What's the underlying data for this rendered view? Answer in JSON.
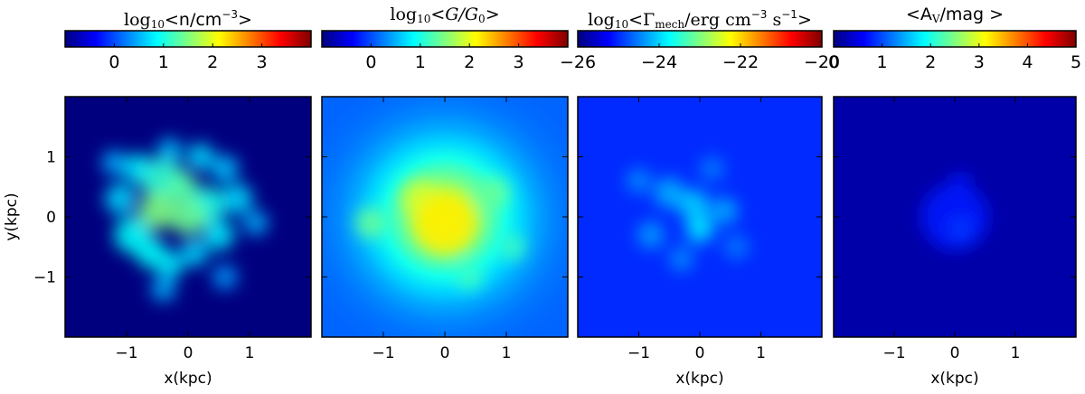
{
  "colormap": [
    "#00007f",
    "#0000ff",
    "#007fff",
    "#00ffff",
    "#7fff7f",
    "#ffff00",
    "#ff7f00",
    "#ff0000",
    "#7f0000"
  ],
  "panel_background": "#00007f",
  "axis_color": "#000000",
  "chart_data": [
    {
      "type": "heatmap",
      "colorbar_label": {
        "prefix": "log",
        "sub": "10",
        "lt": "<",
        "body": "n/cm",
        "sup": "−3",
        "gt": ">"
      },
      "colorbar_range": [
        -1,
        4
      ],
      "colorbar_ticks": [
        0,
        1,
        2,
        3
      ],
      "colorbar_tick_labels": [
        "0",
        "1",
        "2",
        "3"
      ],
      "xlabel": "x(kpc)",
      "ylabel": "y(kpc)",
      "xlim": [
        -2,
        2
      ],
      "ylim": [
        -2,
        2
      ],
      "xticks": [
        -1,
        0,
        1
      ],
      "xtick_labels": [
        "−1",
        "0",
        "1"
      ],
      "yticks": [
        -1,
        0,
        1
      ],
      "ytick_labels": [
        "−1",
        "0",
        "1"
      ],
      "background_value": -1,
      "blobs": [
        {
          "x": -0.4,
          "y": 0.6,
          "value": 1.1,
          "r": 0.35
        },
        {
          "x": -0.1,
          "y": 0.5,
          "value": 1.3,
          "r": 0.25
        },
        {
          "x": -0.5,
          "y": 0.1,
          "value": 1.5,
          "r": 0.3
        },
        {
          "x": 0.0,
          "y": 0.0,
          "value": 1.4,
          "r": 0.3
        },
        {
          "x": 0.3,
          "y": 0.2,
          "value": 1.0,
          "r": 0.3
        },
        {
          "x": -0.8,
          "y": 0.8,
          "value": 0.8,
          "r": 0.25
        },
        {
          "x": -1.1,
          "y": 0.3,
          "value": 0.7,
          "r": 0.25
        },
        {
          "x": -0.9,
          "y": -0.3,
          "value": 0.9,
          "r": 0.3
        },
        {
          "x": -0.6,
          "y": -0.6,
          "value": 0.9,
          "r": 0.25
        },
        {
          "x": -0.3,
          "y": -0.8,
          "value": 0.8,
          "r": 0.22
        },
        {
          "x": 0.1,
          "y": -0.6,
          "value": 0.7,
          "r": 0.22
        },
        {
          "x": 0.5,
          "y": -0.3,
          "value": 0.8,
          "r": 0.25
        },
        {
          "x": 0.8,
          "y": 0.3,
          "value": 0.7,
          "r": 0.25
        },
        {
          "x": 0.6,
          "y": 0.8,
          "value": 0.6,
          "r": 0.22
        },
        {
          "x": 0.2,
          "y": 1.0,
          "value": 0.7,
          "r": 0.22
        },
        {
          "x": -0.3,
          "y": 1.1,
          "value": 0.6,
          "r": 0.2
        },
        {
          "x": -1.2,
          "y": 0.9,
          "value": 0.5,
          "r": 0.2
        },
        {
          "x": 1.1,
          "y": -0.1,
          "value": 0.5,
          "r": 0.2
        },
        {
          "x": -0.4,
          "y": -1.2,
          "value": 0.5,
          "r": 0.2
        },
        {
          "x": 0.6,
          "y": -1.0,
          "value": 0.4,
          "r": 0.2
        }
      ]
    },
    {
      "type": "heatmap",
      "colorbar_label": {
        "prefix": "log",
        "sub": "10",
        "lt": "<",
        "body_italic": "G/G",
        "body_sub": "0",
        "gt": ">"
      },
      "colorbar_range": [
        -1,
        4
      ],
      "colorbar_ticks": [
        0,
        1,
        2,
        3
      ],
      "colorbar_tick_labels": [
        "0",
        "1",
        "2",
        "3"
      ],
      "xlabel": "",
      "ylabel": "",
      "xlim": [
        -2,
        2
      ],
      "ylim": [
        -2,
        2
      ],
      "xticks": [
        -1,
        0,
        1
      ],
      "xtick_labels": [
        "−1",
        "0",
        "1"
      ],
      "yticks": [
        -1,
        0,
        1
      ],
      "background_value": 0.1,
      "radial_profile": {
        "center": [
          0,
          0
        ],
        "peak": 1.9,
        "floor": 0.1,
        "scale": 1.6
      },
      "blobs": [
        {
          "x": 0.0,
          "y": -0.1,
          "value": 2.2,
          "r": 0.5
        },
        {
          "x": -0.4,
          "y": 0.3,
          "value": 1.9,
          "r": 0.3
        },
        {
          "x": -1.2,
          "y": -0.1,
          "value": 1.4,
          "r": 0.25
        },
        {
          "x": 0.8,
          "y": 0.4,
          "value": 1.4,
          "r": 0.25
        },
        {
          "x": 1.1,
          "y": -0.5,
          "value": 1.2,
          "r": 0.2
        },
        {
          "x": 0.4,
          "y": -1.0,
          "value": 1.2,
          "r": 0.2
        }
      ]
    },
    {
      "type": "heatmap",
      "colorbar_label": {
        "prefix": "log",
        "sub": "10",
        "lt": "<",
        "body": "Γ",
        "body_sub": "mech",
        "tail": "/erg cm",
        "sup": "−3",
        "tail2": " s",
        "sup2": "−1",
        "gt": ">"
      },
      "colorbar_range": [
        -26,
        -20
      ],
      "colorbar_ticks": [
        -26,
        -24,
        -22,
        -20
      ],
      "colorbar_tick_labels": [
        "−26",
        "−24",
        "−22",
        "−20"
      ],
      "xlabel": "x(kpc)",
      "ylabel": "",
      "xlim": [
        -2,
        2
      ],
      "ylim": [
        -2,
        2
      ],
      "xticks": [
        -1,
        0,
        1
      ],
      "xtick_labels": [
        "−1",
        "0",
        "1"
      ],
      "yticks": [
        -1,
        0,
        1
      ],
      "background_value": -25.0,
      "blobs": [
        {
          "x": -0.1,
          "y": 0.2,
          "value": -24.0,
          "r": 0.25
        },
        {
          "x": 0.0,
          "y": -0.2,
          "value": -23.8,
          "r": 0.22
        },
        {
          "x": -0.5,
          "y": 0.4,
          "value": -24.2,
          "r": 0.25
        },
        {
          "x": 0.4,
          "y": 0.1,
          "value": -24.2,
          "r": 0.22
        },
        {
          "x": -0.8,
          "y": -0.3,
          "value": -24.3,
          "r": 0.22
        },
        {
          "x": -0.3,
          "y": -0.7,
          "value": -24.4,
          "r": 0.2
        },
        {
          "x": -1.0,
          "y": 0.6,
          "value": -24.4,
          "r": 0.2
        },
        {
          "x": 0.2,
          "y": 0.8,
          "value": -24.5,
          "r": 0.2
        },
        {
          "x": 0.6,
          "y": -0.5,
          "value": -24.5,
          "r": 0.2
        }
      ]
    },
    {
      "type": "heatmap",
      "colorbar_label": {
        "lt": "<",
        "body": "A",
        "body_sub": "V",
        "tail": "/mag",
        "gt": " >"
      },
      "colorbar_range": [
        0,
        5
      ],
      "colorbar_ticks": [
        0,
        1,
        2,
        3,
        4,
        5
      ],
      "colorbar_tick_labels": [
        "0",
        "1",
        "2",
        "3",
        "4",
        "5"
      ],
      "xlabel": "x(kpc)",
      "ylabel": "",
      "xlim": [
        -2,
        2
      ],
      "ylim": [
        -2,
        2
      ],
      "xticks": [
        -1,
        0,
        1
      ],
      "xtick_labels": [
        "−1",
        "0",
        "1"
      ],
      "yticks": [
        -1,
        0,
        1
      ],
      "background_value": 0.2,
      "blobs": [
        {
          "x": 0.0,
          "y": 0.0,
          "value": 0.75,
          "r": 0.55
        },
        {
          "x": 0.1,
          "y": -0.2,
          "value": 0.9,
          "r": 0.2
        },
        {
          "x": 0.1,
          "y": 0.6,
          "value": 0.75,
          "r": 0.15
        }
      ]
    }
  ]
}
